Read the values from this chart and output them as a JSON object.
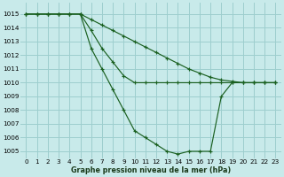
{
  "title": "Graphe pression niveau de la mer (hPa)",
  "bg_color": "#c8eaea",
  "grid_color": "#9dcece",
  "line_color": "#1a6020",
  "ylim": [
    1004.5,
    1015.8
  ],
  "xlim": [
    -0.5,
    23.5
  ],
  "yticks": [
    1005,
    1006,
    1007,
    1008,
    1009,
    1010,
    1011,
    1012,
    1013,
    1014,
    1015
  ],
  "xticks": [
    0,
    1,
    2,
    3,
    4,
    5,
    6,
    7,
    8,
    9,
    10,
    11,
    12,
    13,
    14,
    15,
    16,
    17,
    18,
    19,
    20,
    21,
    22,
    23
  ],
  "series1": {
    "x": [
      0,
      1,
      2,
      3,
      4,
      5,
      6,
      7,
      8,
      9,
      10,
      11,
      12,
      13,
      14,
      15,
      16,
      17,
      18,
      19,
      20,
      21,
      22,
      23
    ],
    "y": [
      1015,
      1015,
      1015,
      1015,
      1015,
      1015,
      1014.6,
      1014.2,
      1013.8,
      1013.4,
      1013.0,
      1012.6,
      1012.2,
      1011.8,
      1011.4,
      1011.0,
      1010.7,
      1010.4,
      1010.2,
      1010.1,
      1010,
      1010,
      1010,
      1010
    ]
  },
  "series2": {
    "x": [
      0,
      1,
      2,
      3,
      4,
      5,
      6,
      7,
      8,
      9,
      10,
      11,
      12,
      13,
      14,
      15,
      16,
      17,
      18,
      19,
      20,
      21,
      22,
      23
    ],
    "y": [
      1015,
      1015,
      1015,
      1015,
      1015,
      1015,
      1013.8,
      1012.5,
      1011.5,
      1010.5,
      1010,
      1010,
      1010,
      1010,
      1010,
      1010,
      1010,
      1010,
      1010,
      1010,
      1010,
      1010,
      1010,
      1010
    ]
  },
  "series3": {
    "x": [
      0,
      1,
      2,
      3,
      4,
      5,
      6,
      7,
      8,
      9,
      10,
      11,
      12,
      13,
      14,
      15,
      16,
      17,
      18,
      19,
      20,
      21,
      22,
      23
    ],
    "y": [
      1015,
      1015,
      1015,
      1015,
      1015,
      1015,
      1012.5,
      1011,
      1009.5,
      1008,
      1006.5,
      1006,
      1005.5,
      1005,
      1004.8,
      1005,
      1005,
      1005,
      1009,
      1010,
      1010,
      1010,
      1010,
      1010
    ]
  }
}
